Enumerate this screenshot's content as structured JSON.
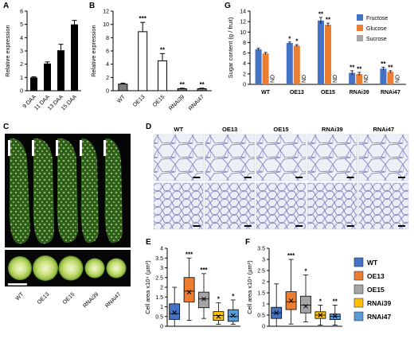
{
  "panels": {
    "A": {
      "label": "A",
      "chart_data": {
        "type": "bar",
        "categories": [
          "9 DAA",
          "11 DAA",
          "13 DAA",
          "15 DAA"
        ],
        "values": [
          1.0,
          2.05,
          3.05,
          5.0
        ],
        "errors": [
          0.05,
          0.12,
          0.45,
          0.3
        ],
        "ylabel": "Relative expression",
        "ylim": [
          0,
          6
        ],
        "yticks": [
          "0",
          "1",
          "2",
          "3",
          "4",
          "5",
          "6"
        ],
        "bar_color": "#000000"
      }
    },
    "B": {
      "label": "B",
      "chart_data": {
        "type": "bar",
        "categories": [
          "WT",
          "OE13",
          "OE15",
          "RNAi39",
          "RNAi47"
        ],
        "values": [
          1.0,
          8.9,
          4.5,
          0.3,
          0.3
        ],
        "errors": [
          0.15,
          1.4,
          1.1,
          0.08,
          0.08
        ],
        "annotations": [
          "",
          "***",
          "**",
          "**",
          "**"
        ],
        "ylabel": "Relative expression",
        "ylim": [
          0,
          12
        ],
        "yticks": [
          "0",
          "2",
          "4",
          "6",
          "8",
          "10",
          "12"
        ],
        "colors": [
          "#808080",
          "#ffffff",
          "#ffffff",
          "#808080",
          "#808080"
        ]
      }
    },
    "G": {
      "label": "G",
      "chart_data": {
        "type": "bar",
        "categories": [
          "WT",
          "OE13",
          "OE15",
          "RNAi39",
          "RNAi47"
        ],
        "series": [
          {
            "name": "Fructose",
            "color": "#4472c4",
            "values": [
              6.7,
              7.9,
              12.2,
              2.2,
              3.0
            ],
            "errors": [
              0.2,
              0.2,
              0.6,
              0.4,
              0.3
            ],
            "annotations": [
              "",
              "*",
              "**",
              "**",
              "**"
            ]
          },
          {
            "name": "Glucose",
            "color": "#ed7d31",
            "values": [
              5.9,
              7.4,
              11.4,
              2.0,
              2.4
            ],
            "errors": [
              0.2,
              0.2,
              0.3,
              0.3,
              0.2
            ],
            "annotations": [
              "",
              "*",
              "**",
              "**",
              "**"
            ]
          },
          {
            "name": "Sucrose",
            "color": "#a5a5a5",
            "values": [
              0,
              0,
              0,
              0,
              0
            ],
            "annotations": [
              "ND",
              "ND",
              "ND",
              "ND",
              "ND"
            ]
          }
        ],
        "ylabel": "Sugar content (g / fruit)",
        "ylim": [
          0,
          14
        ],
        "yticks": [
          "0",
          "2",
          "4",
          "6",
          "8",
          "10",
          "12",
          "14"
        ],
        "legend_placement": "top-right"
      }
    },
    "C": {
      "label": "C",
      "photo_labels": [
        "WT",
        "OE13",
        "OE15",
        "RNAi39",
        "RNAi47"
      ]
    },
    "D": {
      "label": "D",
      "column_labels": [
        "WT",
        "OE13",
        "OE15",
        "RNAi39",
        "RNAi47"
      ]
    },
    "E": {
      "label": "E",
      "chart_data": {
        "type": "box",
        "categories": [
          "WT",
          "OE13",
          "OE15",
          "RNAi39",
          "RNAi47"
        ],
        "boxes": [
          {
            "min": 0.0,
            "q1": 0.35,
            "median": 0.65,
            "q3": 1.15,
            "max": 2.0,
            "mean": 0.7
          },
          {
            "min": 0.3,
            "q1": 1.25,
            "median": 1.8,
            "q3": 2.5,
            "max": 3.5,
            "mean": 1.75
          },
          {
            "min": 0.4,
            "q1": 0.95,
            "median": 1.4,
            "q3": 1.75,
            "max": 2.7,
            "mean": 1.4
          },
          {
            "min": 0.1,
            "q1": 0.3,
            "median": 0.55,
            "q3": 0.75,
            "max": 1.2,
            "mean": 0.5
          },
          {
            "min": 0.1,
            "q1": 0.25,
            "median": 0.5,
            "q3": 0.85,
            "max": 1.35,
            "mean": 0.55
          }
        ],
        "annotations": [
          "",
          "***",
          "***",
          "*",
          "*"
        ],
        "ylabel": "Cell area x10⁴ (μm²)",
        "ylim": [
          0,
          4
        ],
        "yticks": [
          "0",
          "0.5",
          "1",
          "1.5",
          "2",
          "2.5",
          "3",
          "3.5",
          "4"
        ],
        "colors": [
          "#4472c4",
          "#ed7d31",
          "#a5a5a5",
          "#ffc000",
          "#5b9bd5"
        ]
      }
    },
    "F": {
      "label": "F",
      "chart_data": {
        "type": "box",
        "categories": [
          "WT",
          "OE13",
          "OE15",
          "RNAi39",
          "RNAi47"
        ],
        "boxes": [
          {
            "min": 0.0,
            "q1": 0.35,
            "median": 0.6,
            "q3": 0.85,
            "max": 1.9,
            "mean": 0.6
          },
          {
            "min": 0.1,
            "q1": 0.75,
            "median": 1.1,
            "q3": 1.55,
            "max": 3.0,
            "mean": 1.15
          },
          {
            "min": 0.2,
            "q1": 0.6,
            "median": 0.95,
            "q3": 1.35,
            "max": 2.3,
            "mean": 0.9
          },
          {
            "min": 0.05,
            "q1": 0.35,
            "median": 0.5,
            "q3": 0.65,
            "max": 0.95,
            "mean": 0.5
          },
          {
            "min": 0.05,
            "q1": 0.3,
            "median": 0.45,
            "q3": 0.55,
            "max": 0.95,
            "mean": 0.45
          }
        ],
        "annotations": [
          "",
          "***",
          "*",
          "*",
          "**"
        ],
        "ylabel": "Cell area x10⁴ (μm²)",
        "ylim": [
          0,
          3.5
        ],
        "yticks": [
          "0",
          "0.5",
          "1",
          "1.5",
          "2",
          "2.5",
          "3",
          "3.5"
        ],
        "colors": [
          "#4472c4",
          "#ed7d31",
          "#a5a5a5",
          "#ffc000",
          "#5b9bd5"
        ]
      }
    },
    "legend_EF": {
      "items": [
        {
          "name": "WT",
          "color": "#4472c4"
        },
        {
          "name": "OE13",
          "color": "#ed7d31"
        },
        {
          "name": "OE15",
          "color": "#a5a5a5"
        },
        {
          "name": "RNAi39",
          "color": "#ffc000"
        },
        {
          "name": "RNAi47",
          "color": "#5b9bd5"
        }
      ]
    }
  }
}
